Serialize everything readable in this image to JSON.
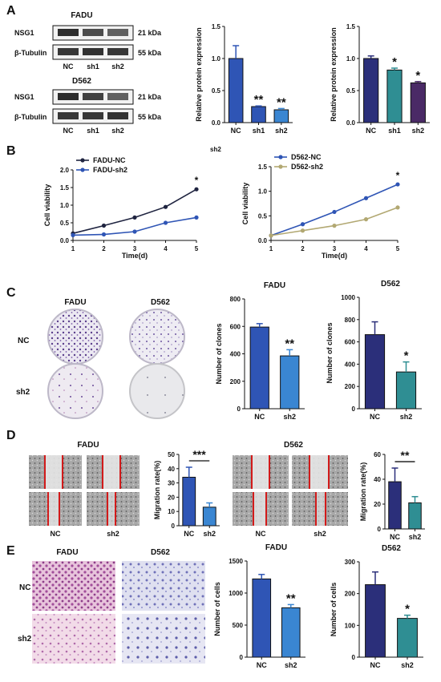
{
  "panel_letters": [
    "A",
    "B",
    "C",
    "D",
    "E"
  ],
  "blot": {
    "groups": [
      {
        "title": "FADU",
        "bands": [
          {
            "name": "NSG1",
            "kda": "21 kDa",
            "intensity": [
              0.95,
              0.8,
              0.7
            ]
          },
          {
            "name": "β-Tubulin",
            "kda": "55 kDa",
            "intensity": [
              0.9,
              0.92,
              0.9
            ]
          }
        ],
        "lanes": [
          "NC",
          "sh1",
          "sh2"
        ]
      },
      {
        "title": "D562",
        "bands": [
          {
            "name": "NSG1",
            "kda": "21 kDa",
            "intensity": [
              0.95,
              0.85,
              0.7
            ]
          },
          {
            "name": "β-Tubulin",
            "kda": "55 kDa",
            "intensity": [
              0.9,
              0.9,
              0.92
            ]
          }
        ],
        "lanes": [
          "NC",
          "sh1",
          "sh2"
        ]
      }
    ],
    "stray_label": "sh2"
  },
  "images": {
    "colony": {
      "col_labels": [
        "FADU",
        "D562"
      ],
      "row_labels": [
        "NC",
        "sh2"
      ]
    },
    "wound_fadu": {
      "title": "FADU",
      "col_labels": [
        "NC",
        "sh2"
      ]
    },
    "wound_d562": {
      "title": "D562",
      "col_labels": [
        "NC",
        "sh2"
      ]
    },
    "invasion": {
      "col_labels": [
        "FADU",
        "D562"
      ],
      "row_labels": [
        "NC",
        "sh2"
      ]
    }
  },
  "colors": {
    "navy": "#2b2f7a",
    "blue": "#2f55b5",
    "sky": "#3a86d2",
    "teal": "#2f8e93",
    "purple": "#4a2a66",
    "olive": "#b2a872",
    "dark": "#1f2440"
  },
  "chart_data": [
    {
      "id": "a1",
      "type": "bar",
      "categories": [
        "NC",
        "sh1",
        "sh2"
      ],
      "values": [
        1.0,
        0.25,
        0.2
      ],
      "errors": [
        0.2,
        0.01,
        0.02
      ],
      "ylabel": "Relative protein expression",
      "ylim": [
        0,
        1.5
      ],
      "yticks": [
        "0.0",
        "0.5",
        "1.0",
        "1.5"
      ],
      "stars": [
        "",
        "**",
        "**"
      ],
      "colors": [
        "#2f55b5",
        "#2f55b5",
        "#3a86d2"
      ]
    },
    {
      "id": "a2",
      "type": "bar",
      "categories": [
        "NC",
        "sh1",
        "sh2"
      ],
      "values": [
        1.0,
        0.82,
        0.62
      ],
      "errors": [
        0.04,
        0.03,
        0.02
      ],
      "ylabel": "Relative protein expression",
      "ylim": [
        0,
        1.5
      ],
      "yticks": [
        "0.0",
        "0.5",
        "1.0",
        "1.5"
      ],
      "stars": [
        "",
        "*",
        "*"
      ],
      "colors": [
        "#2b2f7a",
        "#2f8e93",
        "#4a2a66"
      ]
    },
    {
      "id": "b1",
      "type": "line",
      "x": [
        1,
        2,
        3,
        4,
        5
      ],
      "series": [
        {
          "name": "FADU-NC",
          "values": [
            0.2,
            0.42,
            0.65,
            0.95,
            1.45
          ],
          "color": "#1f2440"
        },
        {
          "name": "FADU-sh2",
          "values": [
            0.15,
            0.17,
            0.25,
            0.5,
            0.65
          ],
          "color": "#2f55b5"
        }
      ],
      "xlabel": "Time(d)",
      "ylabel": "Cell viability",
      "ylim": [
        0,
        2.0
      ],
      "yticks": [
        "0.0",
        "0.5",
        "1.0",
        "1.5",
        "2.0"
      ],
      "star": "*"
    },
    {
      "id": "b2",
      "type": "line",
      "x": [
        1,
        2,
        3,
        4,
        5
      ],
      "series": [
        {
          "name": "D562-NC",
          "values": [
            0.1,
            0.33,
            0.58,
            0.86,
            1.14
          ],
          "color": "#2f55b5"
        },
        {
          "name": "D562-sh2",
          "values": [
            0.1,
            0.2,
            0.3,
            0.43,
            0.67
          ],
          "color": "#b2a872"
        }
      ],
      "xlabel": "Time(d)",
      "ylabel": "Cell viability",
      "ylim": [
        0,
        1.5
      ],
      "yticks": [
        "0.0",
        "0.5",
        "1.0",
        "1.5"
      ],
      "star": "*"
    },
    {
      "id": "c1",
      "type": "bar",
      "title": "FADU",
      "categories": [
        "NC",
        "sh2"
      ],
      "values": [
        595,
        385
      ],
      "errors": [
        25,
        45
      ],
      "ylabel": "Number of clones",
      "ylim": [
        0,
        800
      ],
      "yticks": [
        "0",
        "200",
        "400",
        "600",
        "800"
      ],
      "stars": [
        "",
        "**"
      ],
      "colors": [
        "#2f55b5",
        "#3a86d2"
      ]
    },
    {
      "id": "c2",
      "type": "bar",
      "title": "D562",
      "categories": [
        "NC",
        "sh2"
      ],
      "values": [
        665,
        330
      ],
      "errors": [
        115,
        90
      ],
      "ylabel": "Number of clones",
      "ylim": [
        0,
        1000
      ],
      "yticks": [
        "0",
        "200",
        "400",
        "600",
        "800",
        "1000"
      ],
      "stars": [
        "",
        "*"
      ],
      "colors": [
        "#2b2f7a",
        "#2f8e93"
      ]
    },
    {
      "id": "d1",
      "type": "bar",
      "categories": [
        "NC",
        "sh2"
      ],
      "values": [
        34,
        13
      ],
      "errors": [
        7,
        3
      ],
      "ylabel": "Migration rate(%)",
      "ylim": [
        0,
        50
      ],
      "yticks": [
        "0",
        "10",
        "20",
        "30",
        "40",
        "50"
      ],
      "bracket": "***",
      "colors": [
        "#2f55b5",
        "#3a86d2"
      ]
    },
    {
      "id": "d2",
      "type": "bar",
      "categories": [
        "NC",
        "sh2"
      ],
      "values": [
        38,
        21
      ],
      "errors": [
        11,
        5
      ],
      "ylabel": "Migration rate(%)",
      "ylim": [
        0,
        60
      ],
      "yticks": [
        "0",
        "20",
        "40",
        "60"
      ],
      "bracket": "**",
      "colors": [
        "#2b2f7a",
        "#2f8e93"
      ]
    },
    {
      "id": "e1",
      "type": "bar",
      "title": "FADU",
      "categories": [
        "NC",
        "sh2"
      ],
      "values": [
        1220,
        770
      ],
      "errors": [
        70,
        50
      ],
      "ylabel": "Number of cells",
      "ylim": [
        0,
        1500
      ],
      "yticks": [
        "0",
        "500",
        "1000",
        "1500"
      ],
      "stars": [
        "",
        "**"
      ],
      "colors": [
        "#2f55b5",
        "#3a86d2"
      ]
    },
    {
      "id": "e2",
      "type": "bar",
      "title": "D562",
      "categories": [
        "NC",
        "sh2"
      ],
      "values": [
        228,
        122
      ],
      "errors": [
        40,
        10
      ],
      "ylabel": "Number of cells",
      "ylim": [
        0,
        300
      ],
      "yticks": [
        "0",
        "100",
        "200",
        "300"
      ],
      "stars": [
        "",
        "*"
      ],
      "colors": [
        "#2b2f7a",
        "#2f8e93"
      ]
    }
  ]
}
